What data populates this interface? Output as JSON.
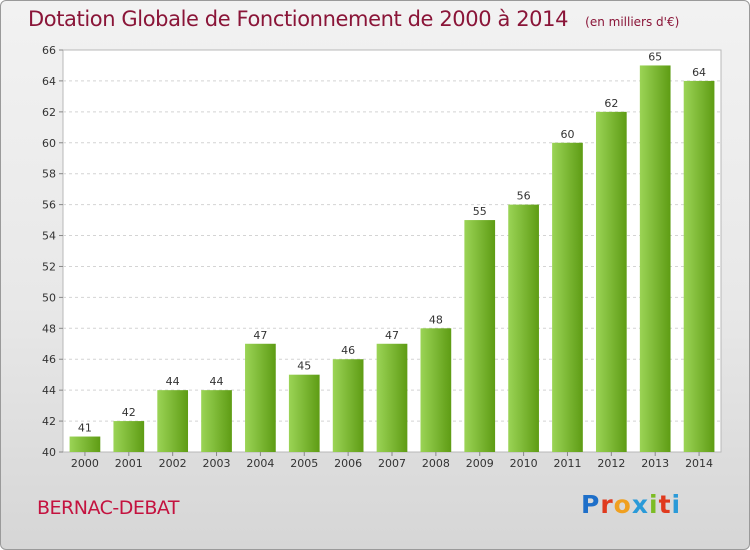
{
  "title": "Dotation Globale de Fonctionnement de 2000 à 2014",
  "subtitle": "(en milliers d'€)",
  "commune": "BERNAC-DEBAT",
  "brand": {
    "letters": [
      "P",
      "r",
      "o",
      "x",
      "i",
      "t",
      "i"
    ],
    "colors": [
      "#1e6fc9",
      "#e03a1e",
      "#f0a020",
      "#2a9ad8",
      "#7cbc24",
      "#e03a1e",
      "#2a9ad8"
    ]
  },
  "colors": {
    "bar_light": "#9bd456",
    "bar_dark": "#5e9c14",
    "title": "#8a1538",
    "commune": "#c4123f"
  },
  "chart_data": {
    "type": "bar",
    "title": "Dotation Globale de Fonctionnement de 2000 à 2014",
    "subtitle": "(en milliers d'€)",
    "xlabel": "",
    "ylabel": "",
    "categories": [
      "2000",
      "2001",
      "2002",
      "2003",
      "2004",
      "2005",
      "2006",
      "2007",
      "2008",
      "2009",
      "2010",
      "2011",
      "2012",
      "2013",
      "2014"
    ],
    "values": [
      41,
      42,
      44,
      44,
      47,
      45,
      46,
      47,
      48,
      55,
      56,
      60,
      62,
      65,
      64
    ],
    "ylim": [
      40,
      66
    ],
    "yticks": [
      40,
      42,
      44,
      46,
      48,
      50,
      52,
      54,
      56,
      58,
      60,
      62,
      64,
      66
    ],
    "grid": true,
    "legend": "none"
  }
}
